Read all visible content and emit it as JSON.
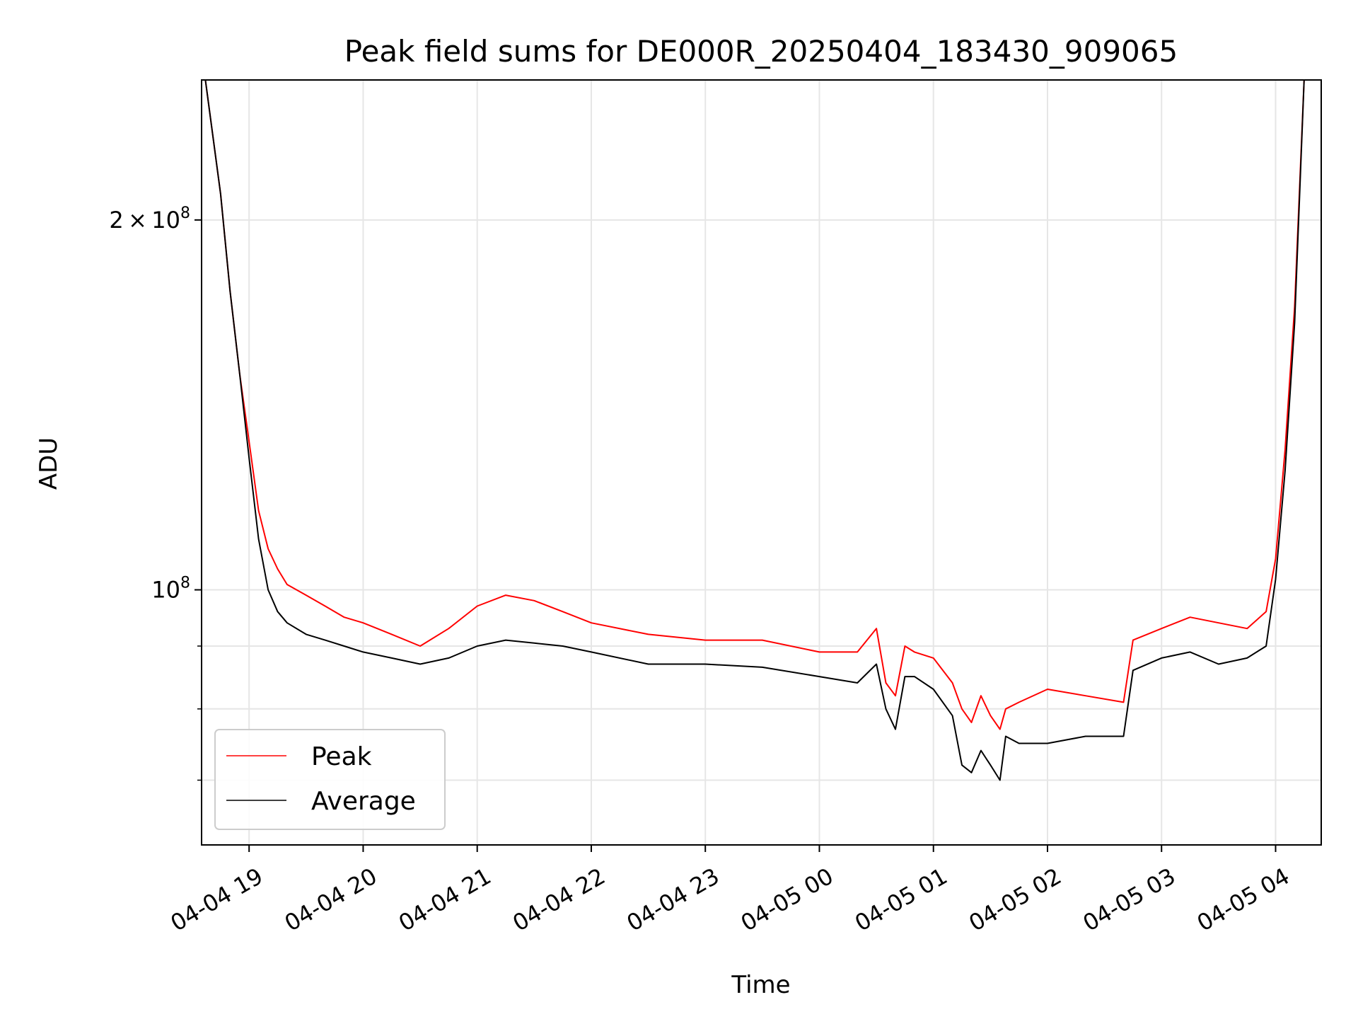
{
  "chart_data": {
    "type": "line",
    "title": "Peak field sums for DE000R_20250404_183430_909065",
    "xlabel": "Time",
    "ylabel": "ADU",
    "y_scale": "log",
    "ylim": [
      62000000,
      260000000
    ],
    "xlim": [
      "2025-04-04 18:35",
      "2025-04-05 04:24"
    ],
    "x_ticks": [
      "04-04 19",
      "04-04 20",
      "04-04 21",
      "04-04 22",
      "04-04 23",
      "04-05 00",
      "04-05 01",
      "04-05 02",
      "04-05 03",
      "04-05 04"
    ],
    "x_tick_times": [
      "2025-04-04 19:00",
      "2025-04-04 20:00",
      "2025-04-04 21:00",
      "2025-04-04 22:00",
      "2025-04-04 23:00",
      "2025-04-05 00:00",
      "2025-04-05 01:00",
      "2025-04-05 02:00",
      "2025-04-05 03:00",
      "2025-04-05 04:00"
    ],
    "y_ticks": [
      {
        "value": 200000000,
        "base": "2",
        "mult": "×",
        "pow_base": "10",
        "exp": "8"
      },
      {
        "value": 100000000,
        "base": "",
        "mult": "",
        "pow_base": "10",
        "exp": "8"
      }
    ],
    "y_minor_ticks": [
      70000000,
      80000000,
      90000000
    ],
    "grid": true,
    "legend_position": "lower-left",
    "series": [
      {
        "name": "Peak",
        "color": "#ff0000",
        "x": [
          "2025-04-04 18:37",
          "2025-04-04 18:45",
          "2025-04-04 18:50",
          "2025-04-04 18:55",
          "2025-04-04 19:00",
          "2025-04-04 19:05",
          "2025-04-04 19:10",
          "2025-04-04 19:15",
          "2025-04-04 19:20",
          "2025-04-04 19:30",
          "2025-04-04 19:40",
          "2025-04-04 19:50",
          "2025-04-04 20:00",
          "2025-04-04 20:15",
          "2025-04-04 20:30",
          "2025-04-04 20:45",
          "2025-04-04 21:00",
          "2025-04-04 21:15",
          "2025-04-04 21:30",
          "2025-04-04 21:45",
          "2025-04-04 22:00",
          "2025-04-04 22:30",
          "2025-04-04 23:00",
          "2025-04-04 23:30",
          "2025-04-05 00:00",
          "2025-04-05 00:20",
          "2025-04-05 00:30",
          "2025-04-05 00:35",
          "2025-04-05 00:40",
          "2025-04-05 00:45",
          "2025-04-05 00:50",
          "2025-04-05 01:00",
          "2025-04-05 01:10",
          "2025-04-05 01:15",
          "2025-04-05 01:20",
          "2025-04-05 01:25",
          "2025-04-05 01:30",
          "2025-04-05 01:35",
          "2025-04-05 01:38",
          "2025-04-05 01:45",
          "2025-04-05 02:00",
          "2025-04-05 02:20",
          "2025-04-05 02:40",
          "2025-04-05 02:45",
          "2025-04-05 03:00",
          "2025-04-05 03:15",
          "2025-04-05 03:30",
          "2025-04-05 03:45",
          "2025-04-05 03:55",
          "2025-04-05 04:00",
          "2025-04-05 04:05",
          "2025-04-05 04:10",
          "2025-04-05 04:15"
        ],
        "y": [
          260000000,
          210000000,
          175000000,
          150000000,
          132000000,
          116000000,
          108000000,
          104000000,
          101000000,
          99000000,
          97000000,
          95000000,
          94000000,
          92000000,
          90000000,
          93000000,
          97000000,
          99000000,
          98000000,
          96000000,
          94000000,
          92000000,
          91000000,
          91000000,
          89000000,
          89000000,
          93000000,
          84000000,
          82000000,
          90000000,
          89000000,
          88000000,
          84000000,
          80000000,
          78000000,
          82000000,
          79000000,
          77000000,
          80000000,
          81000000,
          83000000,
          82000000,
          81000000,
          91000000,
          93000000,
          95000000,
          94000000,
          93000000,
          96000000,
          106000000,
          130000000,
          170000000,
          260000000
        ]
      },
      {
        "name": "Average",
        "color": "#000000",
        "x": [
          "2025-04-04 18:37",
          "2025-04-04 18:45",
          "2025-04-04 18:50",
          "2025-04-04 18:55",
          "2025-04-04 19:00",
          "2025-04-04 19:05",
          "2025-04-04 19:10",
          "2025-04-04 19:15",
          "2025-04-04 19:20",
          "2025-04-04 19:30",
          "2025-04-04 19:40",
          "2025-04-04 19:50",
          "2025-04-04 20:00",
          "2025-04-04 20:15",
          "2025-04-04 20:30",
          "2025-04-04 20:45",
          "2025-04-04 21:00",
          "2025-04-04 21:15",
          "2025-04-04 21:30",
          "2025-04-04 21:45",
          "2025-04-04 22:00",
          "2025-04-04 22:30",
          "2025-04-04 23:00",
          "2025-04-04 23:30",
          "2025-04-05 00:00",
          "2025-04-05 00:20",
          "2025-04-05 00:30",
          "2025-04-05 00:35",
          "2025-04-05 00:40",
          "2025-04-05 00:45",
          "2025-04-05 00:50",
          "2025-04-05 01:00",
          "2025-04-05 01:10",
          "2025-04-05 01:15",
          "2025-04-05 01:20",
          "2025-04-05 01:25",
          "2025-04-05 01:30",
          "2025-04-05 01:35",
          "2025-04-05 01:38",
          "2025-04-05 01:45",
          "2025-04-05 02:00",
          "2025-04-05 02:20",
          "2025-04-05 02:40",
          "2025-04-05 02:45",
          "2025-04-05 03:00",
          "2025-04-05 03:15",
          "2025-04-05 03:30",
          "2025-04-05 03:45",
          "2025-04-05 03:55",
          "2025-04-05 04:00",
          "2025-04-05 04:05",
          "2025-04-05 04:10",
          "2025-04-05 04:15"
        ],
        "y": [
          260000000,
          210000000,
          175000000,
          150000000,
          128000000,
          110000000,
          100000000,
          96000000,
          94000000,
          92000000,
          91000000,
          90000000,
          89000000,
          88000000,
          87000000,
          88000000,
          90000000,
          91000000,
          90500000,
          90000000,
          89000000,
          87000000,
          87000000,
          86500000,
          85000000,
          84000000,
          87000000,
          80000000,
          77000000,
          85000000,
          85000000,
          83000000,
          79000000,
          72000000,
          71000000,
          74000000,
          72000000,
          70000000,
          76000000,
          75000000,
          75000000,
          76000000,
          76000000,
          86000000,
          88000000,
          89000000,
          87000000,
          88000000,
          90000000,
          102000000,
          125000000,
          165000000,
          260000000
        ]
      }
    ]
  }
}
